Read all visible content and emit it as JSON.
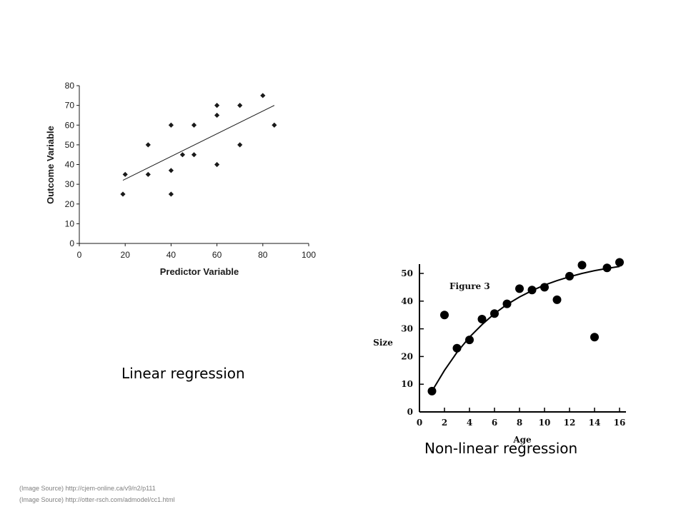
{
  "chart_data": [
    {
      "type": "scatter",
      "xlabel": "Predictor Variable",
      "ylabel": "Outcome Variable",
      "xlim": [
        0,
        100
      ],
      "ylim": [
        0,
        80
      ],
      "xticks": [
        "0",
        "20",
        "40",
        "60",
        "80",
        "100"
      ],
      "yticks": [
        "0",
        "10",
        "20",
        "30",
        "40",
        "50",
        "60",
        "70",
        "80"
      ],
      "grid": false,
      "marker": "diamond",
      "points": [
        {
          "x": 19,
          "y": 25
        },
        {
          "x": 20,
          "y": 35
        },
        {
          "x": 30,
          "y": 50
        },
        {
          "x": 30,
          "y": 35
        },
        {
          "x": 40,
          "y": 60
        },
        {
          "x": 40,
          "y": 37
        },
        {
          "x": 40,
          "y": 25
        },
        {
          "x": 45,
          "y": 45
        },
        {
          "x": 50,
          "y": 60
        },
        {
          "x": 50,
          "y": 45
        },
        {
          "x": 60,
          "y": 70
        },
        {
          "x": 60,
          "y": 65
        },
        {
          "x": 60,
          "y": 40
        },
        {
          "x": 70,
          "y": 70
        },
        {
          "x": 70,
          "y": 50
        },
        {
          "x": 80,
          "y": 75
        },
        {
          "x": 85,
          "y": 60
        }
      ],
      "trendline": {
        "type": "linear",
        "from": [
          19,
          32
        ],
        "to": [
          85,
          70
        ]
      }
    },
    {
      "type": "scatter",
      "xlabel": "Age",
      "ylabel": "Size",
      "annotation": "Figure 3",
      "xlim": [
        0,
        16
      ],
      "ylim": [
        0,
        50
      ],
      "xticks": [
        "0",
        "2",
        "4",
        "6",
        "8",
        "10",
        "12",
        "14",
        "16"
      ],
      "yticks": [
        "0",
        "10",
        "20",
        "30",
        "40",
        "50"
      ],
      "grid": false,
      "marker": "circle",
      "points": [
        {
          "x": 1,
          "y": 7.5
        },
        {
          "x": 2,
          "y": 35
        },
        {
          "x": 3,
          "y": 23
        },
        {
          "x": 4,
          "y": 26
        },
        {
          "x": 5,
          "y": 33.5
        },
        {
          "x": 6,
          "y": 35.5
        },
        {
          "x": 7,
          "y": 39
        },
        {
          "x": 8,
          "y": 44.5
        },
        {
          "x": 9,
          "y": 44
        },
        {
          "x": 10,
          "y": 45
        },
        {
          "x": 11,
          "y": 40.5
        },
        {
          "x": 12,
          "y": 49
        },
        {
          "x": 13,
          "y": 53
        },
        {
          "x": 14,
          "y": 27
        },
        {
          "x": 15,
          "y": 52
        },
        {
          "x": 16,
          "y": 54
        }
      ],
      "curve": {
        "type": "exponential",
        "points": [
          [
            1,
            7.5
          ],
          [
            2,
            15
          ],
          [
            3,
            21.5
          ],
          [
            4,
            27
          ],
          [
            5,
            31.5
          ],
          [
            6,
            35.5
          ],
          [
            7,
            38.8
          ],
          [
            8,
            41.5
          ],
          [
            9,
            43.8
          ],
          [
            10,
            45.8
          ],
          [
            11,
            47.4
          ],
          [
            12,
            48.8
          ],
          [
            13,
            50
          ],
          [
            14,
            51
          ],
          [
            15,
            51.8
          ],
          [
            16,
            52.5
          ]
        ]
      }
    }
  ],
  "captions": {
    "linear": "Linear regression",
    "nonlinear": "Non-linear regression"
  },
  "sources": {
    "line1": "(Image Source) http://cjem-online.ca/v9/n2/p111",
    "line2": "(Image Source) http://otter-rsch.com/admodel/cc1.html"
  }
}
